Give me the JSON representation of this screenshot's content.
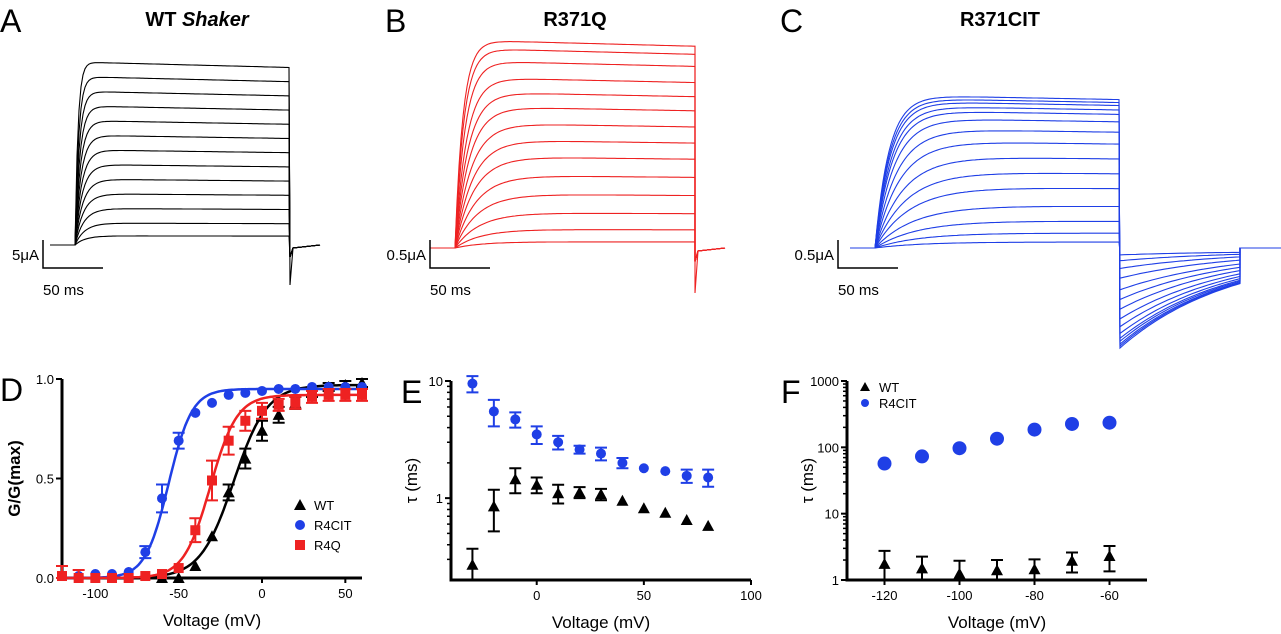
{
  "colors": {
    "wt": "#000000",
    "r4q": "#ee2222",
    "r4cit": "#1f3fe6"
  },
  "traces": [
    {
      "letter": "A",
      "title": "WT ",
      "title_italic": "Shaker",
      "scale_current": "5μA",
      "scale_time": "50 ms",
      "color": "#000000",
      "steady_levels": [
        1.0,
        0.92,
        0.84,
        0.76,
        0.68,
        0.6,
        0.52,
        0.44,
        0.36,
        0.28,
        0.2,
        0.12,
        0.05
      ]
    },
    {
      "letter": "B",
      "title": "R371Q",
      "scale_current": "0.5μA",
      "scale_time": "50 ms",
      "color": "#ee2222",
      "steady_levels": [
        1.0,
        0.96,
        0.9,
        0.82,
        0.75,
        0.68,
        0.6,
        0.52,
        0.44,
        0.35,
        0.26,
        0.17,
        0.09,
        0.03
      ]
    },
    {
      "letter": "C",
      "title": "R371CIT",
      "scale_current": "0.5μA",
      "scale_time": "50 ms",
      "color": "#1f3fe6",
      "steady_levels": [
        1.0,
        0.98,
        0.96,
        0.93,
        0.9,
        0.85,
        0.78,
        0.7,
        0.6,
        0.5,
        0.4,
        0.28,
        0.18,
        0.1,
        0.04
      ]
    }
  ],
  "chart_data": [
    {
      "panel": "D",
      "type": "scatter",
      "xlabel": "Voltage (mV)",
      "ylabel": "G/G(max)",
      "xlim": [
        -120,
        60
      ],
      "ylim": [
        0,
        1
      ],
      "xticks": [
        "-100",
        "-50",
        "0",
        "50"
      ],
      "xtick_values": [
        -100,
        -50,
        0,
        50
      ],
      "yticks": [
        "0.0",
        "0.5",
        "1.0"
      ],
      "ytick_values": [
        0,
        0.5,
        1
      ],
      "legend": "center-right",
      "series": [
        {
          "name": "WT",
          "marker": "triangle",
          "color": "#000000",
          "fit": {
            "vhalf": -17,
            "k": 10,
            "max": 0.97
          },
          "x": [
            -60,
            -50,
            -40,
            -30,
            -20,
            -10,
            0,
            10,
            20,
            30,
            40,
            50,
            60
          ],
          "y": [
            0.0,
            0.0,
            0.06,
            0.21,
            0.43,
            0.6,
            0.74,
            0.82,
            0.88,
            0.93,
            0.96,
            0.97,
            0.98
          ],
          "err": [
            0,
            0,
            0,
            0,
            0.04,
            0.05,
            0.05,
            0.04,
            0.03,
            0.02,
            0.02,
            0.02,
            0.02
          ]
        },
        {
          "name": "R4CIT",
          "marker": "circle",
          "color": "#1f3fe6",
          "fit": {
            "vhalf": -56,
            "k": 7,
            "max": 0.95
          },
          "x": [
            -120,
            -110,
            -100,
            -90,
            -80,
            -70,
            -60,
            -50,
            -40,
            -30,
            -20,
            -10,
            0,
            10,
            20,
            30,
            40,
            50,
            60
          ],
          "y": [
            0.01,
            0.01,
            0.02,
            0.02,
            0.03,
            0.13,
            0.4,
            0.69,
            0.83,
            0.88,
            0.92,
            0.93,
            0.94,
            0.95,
            0.95,
            0.96,
            0.96,
            0.96,
            0.96
          ],
          "err": [
            0,
            0,
            0,
            0,
            0,
            0.03,
            0.07,
            0.04,
            0,
            0,
            0,
            0,
            0,
            0,
            0,
            0,
            0,
            0,
            0
          ]
        },
        {
          "name": "R4Q",
          "marker": "square",
          "color": "#ee2222",
          "fit": {
            "vhalf": -31,
            "k": 8,
            "max": 0.92
          },
          "x": [
            -120,
            -110,
            -100,
            -90,
            -80,
            -70,
            -60,
            -50,
            -40,
            -30,
            -20,
            -10,
            0,
            10,
            20,
            30,
            40,
            50,
            60
          ],
          "y": [
            0.01,
            0.0,
            0.0,
            0.0,
            0.0,
            0.01,
            0.02,
            0.05,
            0.24,
            0.49,
            0.69,
            0.79,
            0.84,
            0.87,
            0.88,
            0.91,
            0.92,
            0.92,
            0.92
          ],
          "err": [
            0.05,
            0.04,
            0,
            0,
            0,
            0,
            0,
            0,
            0.06,
            0.1,
            0.07,
            0.05,
            0.04,
            0.03,
            0.03,
            0.03,
            0.03,
            0.03,
            0.03
          ]
        }
      ]
    },
    {
      "panel": "E",
      "type": "scatter",
      "xlabel": "Voltage (mV)",
      "ylabel": "τ (ms)",
      "xlim": [
        -40,
        100
      ],
      "ylim": [
        0.2,
        10
      ],
      "yscale": "log",
      "xticks": [
        "0",
        "50",
        "100"
      ],
      "xtick_values": [
        0,
        50,
        100
      ],
      "yticks": [
        "1",
        "10"
      ],
      "ytick_values": [
        1,
        10
      ],
      "series": [
        {
          "marker": "circle",
          "color": "#1f3fe6",
          "x": [
            -30,
            -20,
            -10,
            0,
            10,
            20,
            30,
            40,
            50,
            60,
            70,
            80
          ],
          "y": [
            9.5,
            5.5,
            4.7,
            3.5,
            3.0,
            2.6,
            2.4,
            2.0,
            1.8,
            1.7,
            1.55,
            1.5
          ],
          "err": [
            1.5,
            1.4,
            0.7,
            0.6,
            0.4,
            0.2,
            0.3,
            0.2,
            0,
            0,
            0.2,
            0.25
          ]
        },
        {
          "marker": "triangle",
          "color": "#000000",
          "x": [
            -30,
            -20,
            -10,
            0,
            10,
            20,
            30,
            40,
            50,
            60,
            70,
            80
          ],
          "y": [
            0.27,
            0.85,
            1.45,
            1.3,
            1.1,
            1.12,
            1.08,
            0.95,
            0.82,
            0.75,
            0.65,
            0.58
          ],
          "err": [
            0.1,
            0.33,
            0.35,
            0.2,
            0.2,
            0.12,
            0.12,
            0,
            0,
            0,
            0,
            0
          ]
        }
      ]
    },
    {
      "panel": "F",
      "type": "scatter",
      "xlabel": "Voltage (mV)",
      "ylabel": "τ (ms)",
      "xlim": [
        -130,
        -50
      ],
      "ylim": [
        1,
        1000
      ],
      "yscale": "log",
      "xticks": [
        "-120",
        "-100",
        "-80",
        "-60"
      ],
      "xtick_values": [
        -120,
        -100,
        -80,
        -60
      ],
      "yticks": [
        "1",
        "10",
        "100",
        "1000"
      ],
      "ytick_values": [
        1,
        10,
        100,
        1000
      ],
      "legend": "top-left",
      "series": [
        {
          "name": "WT",
          "marker": "triangle",
          "color": "#000000",
          "x": [
            -120,
            -110,
            -100,
            -90,
            -80,
            -70,
            -60
          ],
          "y": [
            1.75,
            1.5,
            1.25,
            1.4,
            1.45,
            1.95,
            2.3
          ],
          "err": [
            1.0,
            0.75,
            0.7,
            0.6,
            0.6,
            0.65,
            0.95
          ]
        },
        {
          "name": "R4CIT",
          "marker": "circle",
          "color": "#1f3fe6",
          "x": [
            -120,
            -110,
            -100,
            -90,
            -80,
            -70,
            -60
          ],
          "y": [
            57,
            73,
            97,
            135,
            185,
            225,
            235
          ],
          "err": [
            0,
            0,
            0,
            0,
            0,
            0,
            0
          ]
        }
      ]
    }
  ]
}
